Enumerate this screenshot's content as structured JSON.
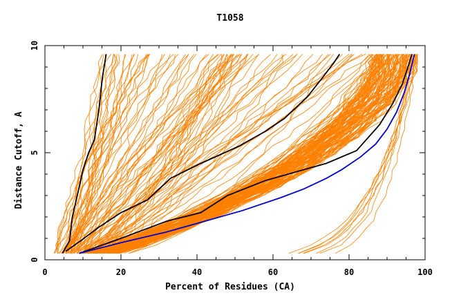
{
  "chart_data": {
    "type": "line",
    "title": "T1058",
    "xlabel": "Percent of Residues (CA)",
    "ylabel": "Distance Cutoff, A",
    "xlim": [
      0,
      100
    ],
    "ylim": [
      0,
      10
    ],
    "x_ticks": [
      0,
      20,
      40,
      60,
      80,
      100
    ],
    "y_ticks": [
      0,
      5,
      10
    ],
    "x_tick_labels": [
      "0",
      "20",
      "40",
      "60",
      "80",
      "100"
    ],
    "y_tick_labels": [
      "0",
      "5",
      "10"
    ],
    "grid": false,
    "legend": "none",
    "colors": {
      "background_model": "#ff8000",
      "highlight_black": "#000000",
      "highlight_blue": "#0000cc"
    },
    "series": [
      {
        "color": "#000000",
        "x": [
          4.6,
          6.5,
          7.2,
          8.5,
          10.0,
          11.5,
          13.0,
          14.2,
          15.1,
          16.1
        ],
        "y": [
          0.3,
          0.9,
          2.0,
          3.0,
          4.2,
          5.0,
          5.6,
          7.0,
          8.5,
          9.6
        ]
      },
      {
        "color": "#000000",
        "x": [
          5.5,
          9.5,
          14.0,
          20.0,
          27.0,
          33.0,
          41.0,
          51.0,
          58.0,
          63.0,
          69.0,
          73.0,
          76.0,
          77.5
        ],
        "y": [
          0.4,
          0.9,
          1.5,
          2.2,
          2.8,
          3.8,
          4.5,
          5.3,
          6.0,
          6.6,
          7.6,
          8.5,
          9.2,
          9.6
        ]
      },
      {
        "color": "#000000",
        "x": [
          9.0,
          20.0,
          32.0,
          41.0,
          48.0,
          58.0,
          68.0,
          74.0,
          82.0,
          88.0,
          91.5,
          94.0,
          95.5,
          96.5
        ],
        "y": [
          0.3,
          1.0,
          1.8,
          2.2,
          3.0,
          3.7,
          4.2,
          4.5,
          5.1,
          6.3,
          7.3,
          8.2,
          9.0,
          9.6
        ]
      },
      {
        "color": "#0000cc",
        "x": [
          9.0,
          20.0,
          32.0,
          42.0,
          52.0,
          62.0,
          68.0,
          74.0,
          78.0,
          83.0,
          87.0,
          90.0,
          92.5,
          94.5,
          96.0,
          97.2
        ],
        "y": [
          0.3,
          0.8,
          1.3,
          1.8,
          2.3,
          2.9,
          3.3,
          3.8,
          4.2,
          4.8,
          5.4,
          6.1,
          6.9,
          7.8,
          8.7,
          9.6
        ]
      }
    ]
  }
}
